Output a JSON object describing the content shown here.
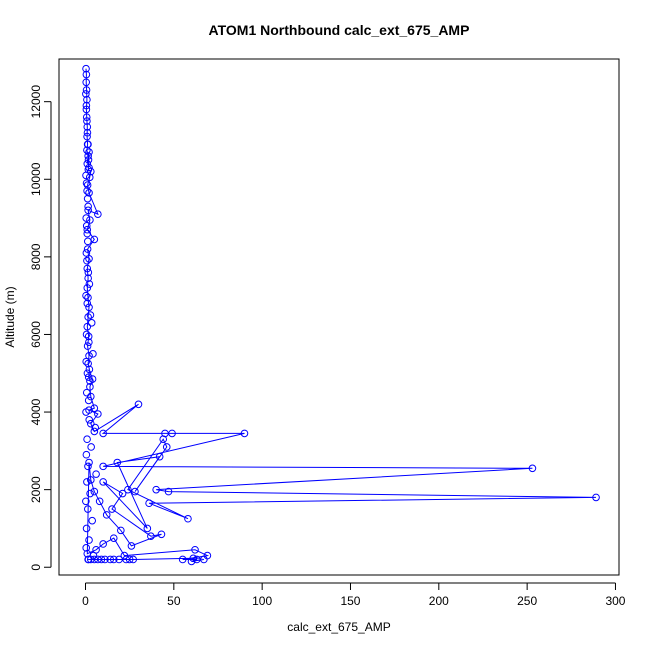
{
  "chart_data": {
    "type": "line",
    "title": "ATOM1 Northbound calc_ext_675_AMP",
    "xlabel": "calc_ext_675_AMP",
    "ylabel": "Altitude (m)",
    "xlim": [
      -15,
      302
    ],
    "ylim": [
      -200,
      13100
    ],
    "x_ticks": [
      0,
      50,
      100,
      150,
      200,
      250,
      300
    ],
    "y_ticks": [
      0,
      2000,
      4000,
      6000,
      8000,
      10000,
      12000
    ],
    "series": [
      {
        "color": "#0000ff",
        "marker": "open-circle",
        "x": [
          0.3,
          0.5,
          0.4,
          0.6,
          0.8,
          0.5,
          0.7,
          1.0,
          0.9,
          1.2,
          0.8,
          1.5,
          1.0,
          2.0,
          1.6,
          3.0,
          2.4,
          1.2,
          2.0,
          7.0,
          1.5,
          2.5,
          1.0,
          5.0,
          1.2,
          2.0,
          1.0,
          1.5,
          1.0,
          1.4,
          2.0,
          1.5,
          1.0,
          1.8,
          1.2,
          2.0,
          1.5,
          2.2,
          1.8,
          4.0,
          2.5,
          3.0,
          5.0,
          2.0,
          7.0,
          3.0,
          5.0,
          30.0,
          10.0,
          45.0,
          49.0,
          90.0,
          10.0,
          253.0,
          40.0,
          47.0,
          289.0,
          36.0,
          58.0,
          24.0,
          44.0,
          46.0,
          28.0,
          42.0,
          18.0,
          35.0,
          10.0,
          21.0,
          15.0,
          37.0,
          43.0,
          26.0,
          20.0,
          12.0,
          8.0,
          5.0,
          3.0,
          2.0,
          1.0,
          6.0,
          10.0,
          16.0,
          22.0,
          62.0,
          69.0,
          55.0,
          63.0,
          60.0,
          67.0,
          61.0,
          27.0,
          25.0,
          23.0,
          19.0,
          16.0,
          14.0,
          11.0,
          9.0,
          7.0,
          5.0,
          3.0,
          1.5
        ],
        "y": [
          12850,
          12700,
          12500,
          12300,
          12050,
          11800,
          11600,
          11350,
          11100,
          10900,
          10750,
          10600,
          10400,
          10700,
          10250,
          10200,
          10050,
          9850,
          9650,
          9100,
          9200,
          8950,
          8700,
          8450,
          8200,
          7950,
          7700,
          7450,
          7200,
          6950,
          6700,
          6450,
          6200,
          5950,
          5700,
          5450,
          5250,
          5100,
          4900,
          4850,
          4650,
          4400,
          4100,
          4050,
          3950,
          3700,
          3500,
          4200,
          3450,
          3450,
          3450,
          3450,
          2600,
          2550,
          2000,
          1950,
          1800,
          1650,
          1250,
          2000,
          3300,
          3100,
          1950,
          2850,
          2700,
          1000,
          2200,
          1900,
          1500,
          800,
          850,
          550,
          950,
          1350,
          1700,
          1950,
          2250,
          2700,
          350,
          450,
          600,
          750,
          300,
          450,
          300,
          200,
          200,
          150,
          200,
          230,
          200,
          200,
          200,
          200,
          200,
          200,
          200,
          200,
          200,
          200,
          200,
          200
        ]
      }
    ],
    "scatter_points": {
      "x": [
        0.2,
        0.5,
        0.8,
        1.1,
        1.4,
        1.7,
        2.0,
        0.3,
        0.6,
        0.9,
        1.2,
        1.5,
        0.4,
        0.7,
        1.0,
        1.3,
        0.5,
        0.8,
        1.6,
        2.2,
        0.3,
        1.0,
        2.8,
        3.5,
        0.6,
        1.9,
        4.2,
        0.4,
        1.1,
        2.5,
        0.7,
        1.8,
        0.3,
        2.1,
        5.5,
        0.9,
        3.2,
        0.5,
        1.4,
        6.0,
        0.8,
        2.6,
        0.2,
        1.3,
        3.8,
        0.6,
        2.0,
        0.4,
        4.5,
        1.7
      ],
      "y": [
        12200,
        11900,
        11500,
        11200,
        10900,
        10500,
        10300,
        10100,
        9900,
        9700,
        9500,
        9300,
        9000,
        8800,
        8600,
        8400,
        8100,
        7900,
        7600,
        7300,
        7000,
        6800,
        6500,
        6300,
        6000,
        5800,
        5500,
        5300,
        5000,
        4800,
        4500,
        4300,
        4000,
        3800,
        3600,
        3300,
        3100,
        2900,
        2600,
        2400,
        2200,
        1900,
        1700,
        1500,
        1200,
        1000,
        700,
        500,
        300,
        200
      ]
    }
  }
}
